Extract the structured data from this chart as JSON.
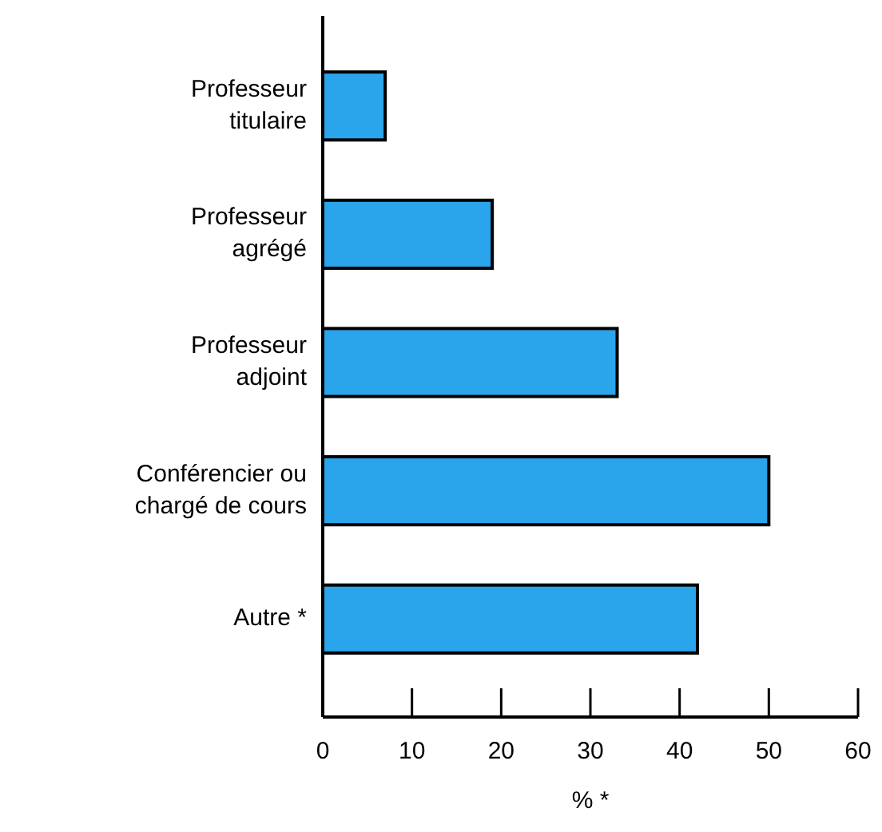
{
  "chart_data": {
    "type": "bar",
    "orientation": "horizontal",
    "xlabel": "% *",
    "categories": [
      "Professeur titulaire",
      "Professeur agrégé",
      "Professeur adjoint",
      "Conférencier ou chargé de cours",
      "Autre *"
    ],
    "values": [
      7,
      19,
      33,
      50,
      42
    ],
    "color": "#2aa4ea",
    "xlim": [
      0,
      60
    ],
    "xticks": [
      0,
      10,
      20,
      30,
      40,
      50,
      60
    ],
    "grid": false
  }
}
